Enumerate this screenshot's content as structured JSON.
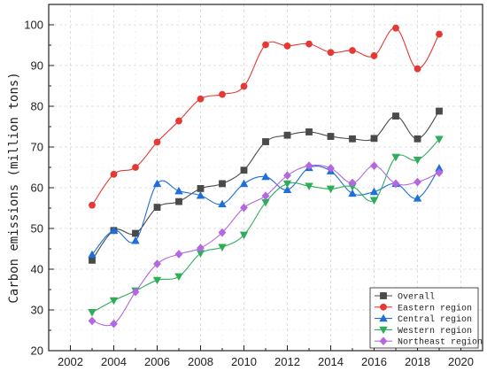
{
  "chart_data": {
    "type": "line",
    "xlabel": "",
    "ylabel": "Carbon emissions (million tons)",
    "xlim": [
      2001,
      2021
    ],
    "ylim": [
      20,
      105
    ],
    "xticks": [
      2002,
      2004,
      2006,
      2008,
      2010,
      2012,
      2014,
      2016,
      2018,
      2020
    ],
    "yticks": [
      20,
      30,
      40,
      50,
      60,
      70,
      80,
      90,
      100
    ],
    "grid": true,
    "legend_position": "bottom-right",
    "x": [
      2003,
      2004,
      2005,
      2006,
      2007,
      2008,
      2009,
      2010,
      2011,
      2012,
      2013,
      2014,
      2015,
      2016,
      2017,
      2018,
      2019
    ],
    "series": [
      {
        "name": "Overall",
        "color": "#4a4a4a",
        "marker": "square",
        "values": [
          42.2,
          49.5,
          48.8,
          55.2,
          56.6,
          59.8,
          61.0,
          64.3,
          71.3,
          72.9,
          73.7,
          72.6,
          72.0,
          72.1,
          77.6,
          72.0,
          78.8
        ]
      },
      {
        "name": "Eastern region",
        "color": "#e53935",
        "marker": "circle",
        "values": [
          55.7,
          63.3,
          65.0,
          71.2,
          76.4,
          81.8,
          82.9,
          84.9,
          95.1,
          94.8,
          95.3,
          93.2,
          93.7,
          92.4,
          99.2,
          89.2,
          97.7
        ]
      },
      {
        "name": "Central region",
        "color": "#1e6fd9",
        "marker": "triangle-up",
        "values": [
          43.6,
          49.5,
          47.0,
          61.0,
          59.2,
          58.1,
          56.0,
          61.0,
          62.7,
          59.5,
          64.9,
          64.1,
          58.6,
          59.0,
          61.0,
          57.4,
          64.8
        ]
      },
      {
        "name": "Western region",
        "color": "#2fae5a",
        "marker": "triangle-down",
        "values": [
          29.4,
          32.3,
          34.7,
          37.3,
          38.2,
          43.9,
          45.4,
          48.4,
          56.4,
          61.0,
          60.4,
          59.7,
          60.3,
          56.9,
          67.5,
          66.8,
          71.9
        ]
      },
      {
        "name": "Northeast region",
        "color": "#b467e0",
        "marker": "diamond",
        "values": [
          27.3,
          26.6,
          34.4,
          41.3,
          43.7,
          45.2,
          49.0,
          55.1,
          58.0,
          63.0,
          65.4,
          64.8,
          61.2,
          65.4,
          61.0,
          61.4,
          63.7
        ]
      }
    ]
  }
}
